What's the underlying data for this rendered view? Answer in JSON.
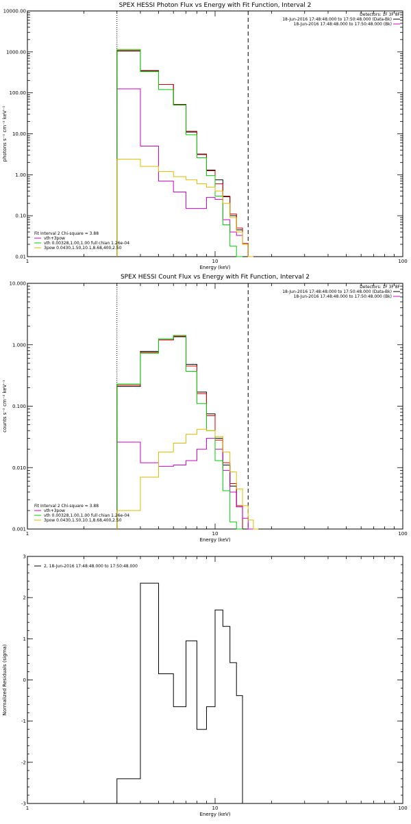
{
  "chart_data": [
    {
      "type": "line",
      "step": true,
      "title": "SPEX HESSI Photon Flux vs Energy with Fit Function, Interval 2",
      "xlabel": "Energy (keV)",
      "ylabel": "photons s⁻¹ cm⁻² keV⁻¹",
      "xscale": "log",
      "yscale": "log",
      "xlim": [
        1,
        100
      ],
      "ylim": [
        0.01,
        10000
      ],
      "x_ticks": [
        {
          "v": 1,
          "label": "1"
        },
        {
          "v": 10,
          "label": "10"
        },
        {
          "v": 100,
          "label": "100"
        }
      ],
      "y_ticks": [
        {
          "v": 0.01,
          "label": "0.01"
        },
        {
          "v": 0.1,
          "label": "0.10"
        },
        {
          "v": 1,
          "label": "1.00"
        },
        {
          "v": 10,
          "label": "10.00"
        },
        {
          "v": 100,
          "label": "100.00"
        },
        {
          "v": 1000,
          "label": "1000.00"
        },
        {
          "v": 10000,
          "label": "10000.00"
        }
      ],
      "vlines": [
        {
          "x": 3.0,
          "style": "dotted"
        },
        {
          "x": 15.0,
          "style": "dashed"
        }
      ],
      "edges": [
        3.0,
        4.0,
        5.0,
        6.0,
        7.0,
        8.0,
        9.0,
        10.0,
        11.0,
        12.0,
        13.0,
        14.0,
        15.0,
        16.0,
        17.0,
        18.0
      ],
      "series": [
        {
          "name": "",
          "color": "#000000",
          "values": [
            1050,
            350,
            160,
            52,
            11,
            3.2,
            1.3,
            0.75,
            0.29,
            0.1,
            0.045,
            0.02,
            null,
            null,
            null
          ]
        },
        {
          "name": "",
          "color": "#cc0000",
          "values": [
            1080,
            340,
            160,
            51,
            11.5,
            3.1,
            1.25,
            0.6,
            0.3,
            0.11,
            0.05,
            0.021,
            null,
            null,
            null
          ]
        },
        {
          "name": "vth+3pow",
          "color": "#cc00cc",
          "values": [
            125,
            5.0,
            0.7,
            0.38,
            0.15,
            0.15,
            0.28,
            0.25,
            0.08,
            0.04,
            0.033,
            0.02,
            0.01,
            null,
            null
          ]
        },
        {
          "name": "vth 0.00328,1.00,1.00  full chian 1.26e-04",
          "color": "#00cc00",
          "values": [
            1150,
            330,
            120,
            50,
            9.5,
            2.6,
            0.95,
            0.3,
            0.06,
            0.018,
            0.01,
            null,
            null,
            null,
            null
          ]
        },
        {
          "name": "3pow 0.0430,1.50,10.1,8.68,400,2.50",
          "color": "#ddbb00",
          "values": [
            2.4,
            1.6,
            1.2,
            0.9,
            0.75,
            0.6,
            0.5,
            0.4,
            0.2,
            0.09,
            0.04,
            0.02,
            0.01,
            null,
            null
          ]
        }
      ],
      "legend": {
        "position": "bottom-left",
        "header": "Fit Interval 2   Chi-square = 3.88"
      },
      "annotation": {
        "position": "top-right",
        "lines": [
          {
            "text": "Detectors: 1F 3F 8F",
            "color": ""
          },
          {
            "text": "18-Jun-2016 17:48:48.000 to 17:50:48.000 (Data-Bk)",
            "color": "#000000"
          },
          {
            "text": "18-Jun-2016 17:48:48.000 to 17:50:48.000 (Bk)",
            "color": "#cc00cc"
          }
        ]
      }
    },
    {
      "type": "line",
      "step": true,
      "title": "SPEX HESSI Count Flux vs Energy with Fit Function, Interval 2",
      "xlabel": "Energy (keV)",
      "ylabel": "counts s⁻¹ cm⁻² keV⁻¹",
      "xscale": "log",
      "yscale": "log",
      "xlim": [
        1,
        100
      ],
      "ylim": [
        0.001,
        10
      ],
      "x_ticks": [
        {
          "v": 1,
          "label": "1"
        },
        {
          "v": 10,
          "label": "10"
        },
        {
          "v": 100,
          "label": "100"
        }
      ],
      "y_ticks": [
        {
          "v": 0.001,
          "label": "0.001"
        },
        {
          "v": 0.01,
          "label": "0.010"
        },
        {
          "v": 0.1,
          "label": "0.100"
        },
        {
          "v": 1,
          "label": "1.000"
        },
        {
          "v": 10,
          "label": "10.000"
        }
      ],
      "vlines": [
        {
          "x": 3.0,
          "style": "dotted"
        },
        {
          "x": 15.0,
          "style": "dashed"
        }
      ],
      "edges": [
        3.0,
        4.0,
        5.0,
        6.0,
        7.0,
        8.0,
        9.0,
        10.0,
        11.0,
        12.0,
        13.0,
        14.0,
        15.0,
        16.0,
        17.0,
        18.0
      ],
      "series": [
        {
          "name": "",
          "color": "#000000",
          "values": [
            0.21,
            0.78,
            1.2,
            1.35,
            0.48,
            0.17,
            0.075,
            0.03,
            0.011,
            0.005,
            0.0023,
            null,
            null,
            null,
            null
          ]
        },
        {
          "name": "",
          "color": "#cc0000",
          "values": [
            0.22,
            0.75,
            1.2,
            1.38,
            0.45,
            0.16,
            0.07,
            0.028,
            0.012,
            0.0055,
            0.0024,
            null,
            null,
            null,
            null
          ]
        },
        {
          "name": "vth+3pow",
          "color": "#cc00cc",
          "values": [
            0.026,
            0.012,
            0.0105,
            0.011,
            0.013,
            0.02,
            0.03,
            0.02,
            0.009,
            0.004,
            0.0023,
            0.0015,
            0.001,
            null,
            null
          ]
        },
        {
          "name": "vth 0.00328,1.00,1.00  full chian 1.26e-04",
          "color": "#00cc00",
          "values": [
            0.23,
            0.73,
            1.25,
            1.42,
            0.37,
            0.11,
            0.04,
            0.013,
            0.0042,
            0.0013,
            0.001,
            null,
            null,
            null,
            null
          ]
        },
        {
          "name": "3pow 0.0430,1.50,10.1,8.68,400,2.50",
          "color": "#ddbb00",
          "values": [
            0.002,
            0.007,
            0.018,
            0.025,
            0.035,
            0.042,
            0.04,
            0.032,
            0.018,
            0.0085,
            0.0045,
            0.0024,
            0.0014,
            0.001,
            null
          ]
        }
      ],
      "legend": {
        "position": "bottom-left",
        "header": "Fit Interval 2   Chi-square = 3.88"
      },
      "annotation": {
        "position": "top-right",
        "lines": [
          {
            "text": "Detectors: 1F 3F 8F",
            "color": ""
          },
          {
            "text": "18-Jun-2016 17:48:48.000 to 17:50:48.000 (Data-Bk)",
            "color": "#000000"
          },
          {
            "text": "18-Jun-2016 17:48:48.000 to 17:50:48.000 (Bk)",
            "color": "#cc00cc"
          }
        ]
      }
    },
    {
      "type": "line",
      "step": true,
      "title": "",
      "xlabel": "Energy (keV)",
      "ylabel": "Normalized Residuals (sigma)",
      "xscale": "log",
      "yscale": "linear",
      "xlim": [
        1,
        100
      ],
      "ylim": [
        -3,
        3
      ],
      "x_ticks": [
        {
          "v": 1,
          "label": "1"
        },
        {
          "v": 10,
          "label": "10"
        },
        {
          "v": 100,
          "label": "100"
        }
      ],
      "y_ticks": [
        {
          "v": -3,
          "label": "-3"
        },
        {
          "v": -2,
          "label": "-2"
        },
        {
          "v": -1,
          "label": "-1"
        },
        {
          "v": 0,
          "label": "0"
        },
        {
          "v": 1,
          "label": "1"
        },
        {
          "v": 2,
          "label": "2"
        },
        {
          "v": 3,
          "label": "3"
        }
      ],
      "vlines": [],
      "edges": [
        3.0,
        4.0,
        5.0,
        6.0,
        7.0,
        8.0,
        9.0,
        10.0,
        11.0,
        12.0,
        13.0,
        14.0,
        15.0
      ],
      "series": [
        {
          "name": "2, 18-Jun-2016 17:48:48.000 to 17:50:48.000",
          "color": "#000000",
          "values": [
            -2.4,
            2.35,
            0.15,
            -0.65,
            0.95,
            -1.2,
            -0.65,
            1.7,
            1.3,
            0.42,
            -0.38,
            null
          ]
        }
      ],
      "legend": {
        "position": "top-left",
        "header": ""
      },
      "annotation": {
        "position": "",
        "lines": []
      }
    }
  ]
}
